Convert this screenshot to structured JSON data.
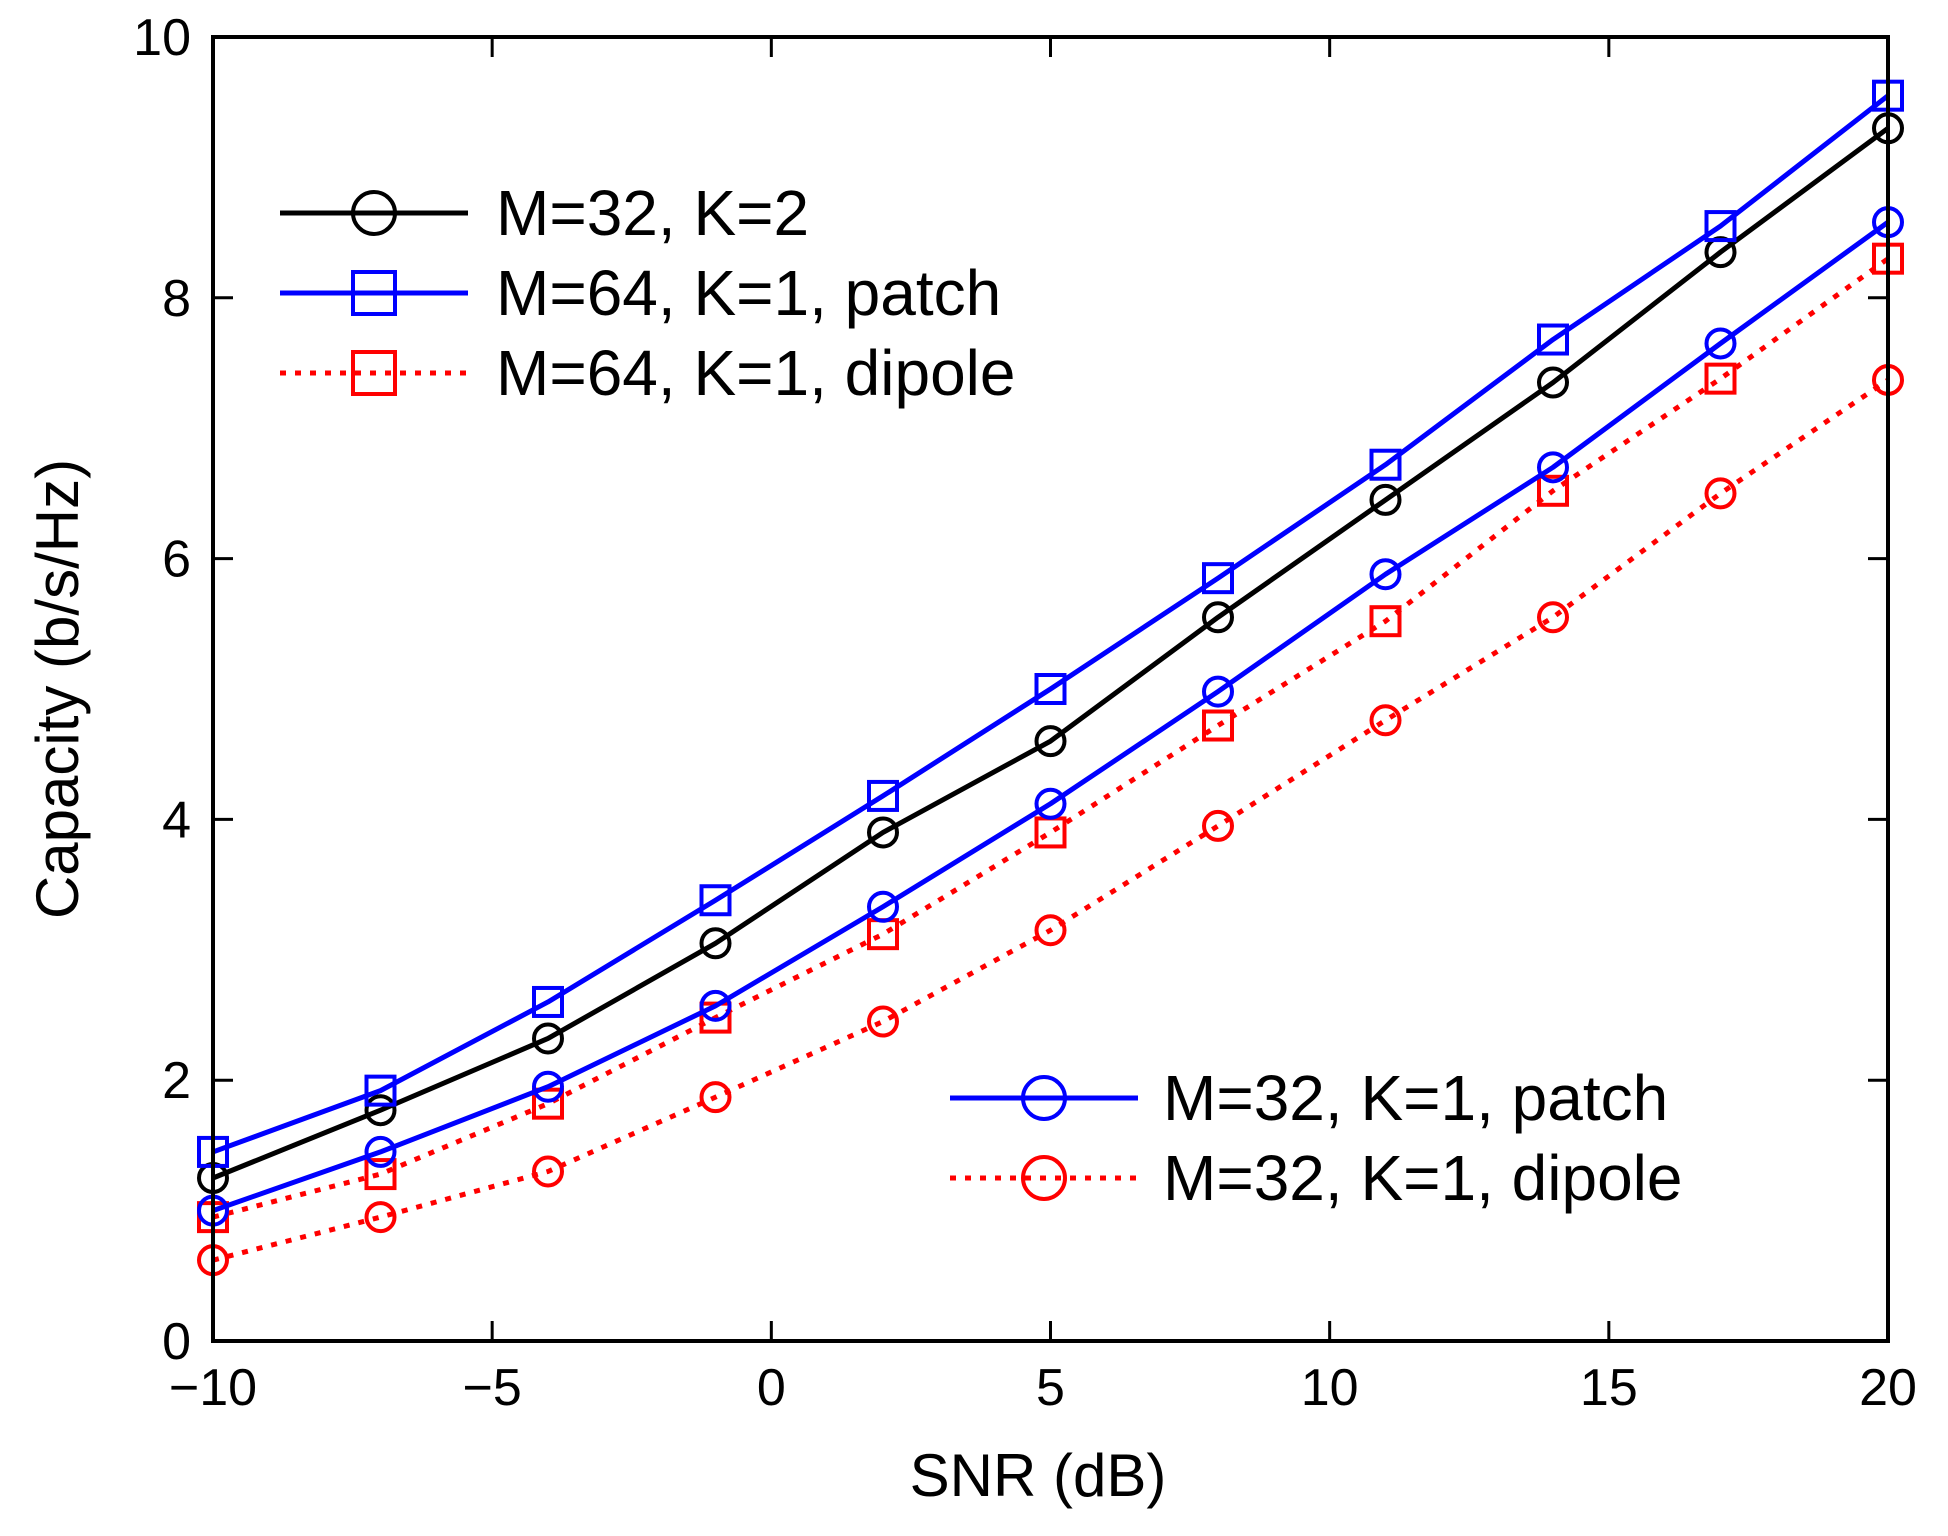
{
  "chart_data": {
    "type": "line",
    "title": "",
    "xlabel": "SNR (dB)",
    "ylabel": "Capacity (b/s/Hz)",
    "xlim": [
      -10,
      20
    ],
    "ylim": [
      0,
      10
    ],
    "grid": false,
    "xticks": [
      -10,
      -5,
      0,
      5,
      10,
      15,
      20
    ],
    "xtick_labels": [
      "−10",
      "−5",
      "0",
      "5",
      "10",
      "15",
      "20"
    ],
    "yticks": [
      0,
      2,
      4,
      6,
      8,
      10
    ],
    "ytick_labels": [
      "0",
      "2",
      "4",
      "6",
      "8",
      "10"
    ],
    "x": [
      -10,
      -7,
      -4,
      -1,
      2,
      5,
      8,
      11,
      14,
      17,
      20
    ],
    "series": [
      {
        "name": "M=32, K=2",
        "color": "#000000",
        "style": "solid",
        "marker": "circle",
        "values": [
          1.25,
          1.77,
          2.32,
          3.05,
          3.9,
          4.6,
          5.55,
          6.45,
          7.35,
          8.35,
          9.3
        ]
      },
      {
        "name": "M=64, K=1, patch",
        "color": "#0000ff",
        "style": "solid",
        "marker": "square",
        "values": [
          1.45,
          1.92,
          2.6,
          3.38,
          4.18,
          5.0,
          5.85,
          6.72,
          7.68,
          8.55,
          9.55
        ]
      },
      {
        "name": "M=64, K=1, dipole",
        "color": "#ff0000",
        "style": "dotted",
        "marker": "square",
        "values": [
          0.95,
          1.28,
          1.82,
          2.48,
          3.12,
          3.9,
          4.72,
          5.52,
          6.52,
          7.38,
          8.3
        ]
      },
      {
        "name": "M=32, K=1, patch",
        "color": "#0000ff",
        "style": "solid",
        "marker": "circle",
        "values": [
          1.0,
          1.45,
          1.95,
          2.57,
          3.33,
          4.12,
          4.98,
          5.88,
          6.7,
          7.65,
          8.58
        ]
      },
      {
        "name": "M=32, K=1, dipole",
        "color": "#ff0000",
        "style": "dotted",
        "marker": "circle",
        "values": [
          0.62,
          0.95,
          1.3,
          1.87,
          2.45,
          3.15,
          3.95,
          4.76,
          5.55,
          6.5,
          7.37
        ]
      }
    ],
    "legends": [
      {
        "placement": "top-left",
        "entries": [
          0,
          1,
          2
        ]
      },
      {
        "placement": "bottom-right",
        "entries": [
          3,
          4
        ]
      }
    ]
  }
}
